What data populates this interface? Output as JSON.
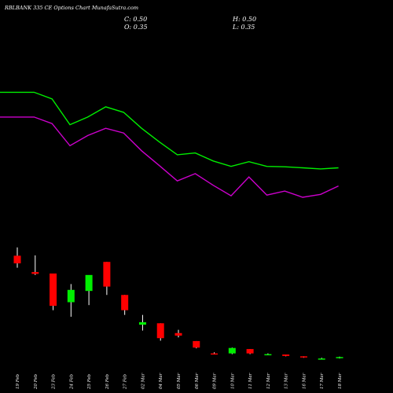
{
  "header": {
    "title": "RBLBANK 335 CE Options  Chart MunafaSutra.com",
    "close": "C: 0.50",
    "open": "O: 0.35",
    "high": "H: 0.50",
    "low": "L: 0.35"
  },
  "chart_data": {
    "type": "candlestick",
    "title": "RBLBANK 335 CE Options  Chart MunafaSutra.com",
    "categories": [
      "19 Feb",
      "20 Feb",
      "23 Feb",
      "24 Feb",
      "25 Feb",
      "26 Feb",
      "27 Feb",
      "02 Mar",
      "04 Mar",
      "05 Mar",
      "06 Mar",
      "09 Mar",
      "10 Mar",
      "11 Mar",
      "12 Mar",
      "13 Mar",
      "16 Mar",
      "17 Mar",
      "18 Mar"
    ],
    "candles": [
      {
        "o": 7.5,
        "h": 9.8,
        "l": 4.2,
        "c": 5.4,
        "color": "#ff0000"
      },
      {
        "o": 3.0,
        "h": 7.6,
        "l": 2.2,
        "c": 2.5,
        "color": "#ff0000"
      },
      {
        "o": 2.6,
        "h": 2.6,
        "l": -7.5,
        "c": -6.3,
        "color": "#ff0000"
      },
      {
        "o": -5.3,
        "h": -0.3,
        "l": -9.3,
        "c": -1.9,
        "color": "#00ee00"
      },
      {
        "o": -2.2,
        "h": 2.0,
        "l": -6.1,
        "c": 2.2,
        "color": "#00ee00"
      },
      {
        "o": 5.8,
        "h": 5.8,
        "l": -3.3,
        "c": -1.0,
        "color": "#ff0000"
      },
      {
        "o": -3.3,
        "h": -3.3,
        "l": -8.8,
        "c": -7.5,
        "color": "#ff0000"
      },
      {
        "o": -11.5,
        "h": -8.8,
        "l": -13.1,
        "c": -10.8,
        "color": "#00ee00"
      },
      {
        "o": -11.1,
        "h": -11.1,
        "l": -15.9,
        "c": -15.2,
        "color": "#ff0000"
      },
      {
        "o": -13.8,
        "h": -12.9,
        "l": -15.0,
        "c": -14.5,
        "color": "#ff0000"
      },
      {
        "o": -16.0,
        "h": -16.0,
        "l": -18.0,
        "c": -17.8,
        "color": "#ff0000"
      },
      {
        "o": -19.4,
        "h": -19.1,
        "l": -19.6,
        "c": -19.4,
        "color": "#ff0000"
      },
      {
        "o": -19.4,
        "h": -17.8,
        "l": -19.6,
        "c": -17.9,
        "color": "#00ee00"
      },
      {
        "o": -18.2,
        "h": -18.2,
        "l": -19.6,
        "c": -19.4,
        "color": "#ff0000"
      },
      {
        "o": -19.6,
        "h": -19.4,
        "l": -19.9,
        "c": -19.6,
        "color": "#00ee00"
      },
      {
        "o": -19.7,
        "h": -19.7,
        "l": -20.2,
        "c": -20.1,
        "color": "#ff0000"
      },
      {
        "o": -20.2,
        "h": -20.2,
        "l": -20.6,
        "c": -20.5,
        "color": "#ff0000"
      },
      {
        "o": -20.8,
        "h": -20.6,
        "l": -21.0,
        "c": -20.8,
        "color": "#00ee00"
      },
      {
        "o": -20.5,
        "h": -20.3,
        "l": -20.8,
        "c": -20.4,
        "color": "#00ee00"
      }
    ],
    "series": [
      {
        "color": "#00ee00",
        "values": [
          52.5,
          52.5,
          50.7,
          43.6,
          45.7,
          48.5,
          47.0,
          42.6,
          38.8,
          35.3,
          35.8,
          33.6,
          32.1,
          33.4,
          32.1,
          32.0,
          31.7,
          31.4,
          31.7
        ]
      },
      {
        "color": "#cc00cc",
        "values": [
          45.7,
          45.7,
          43.9,
          37.8,
          40.6,
          42.6,
          41.3,
          36.4,
          32.3,
          28.1,
          30.1,
          26.9,
          24.0,
          29.2,
          24.2,
          25.3,
          23.6,
          24.4,
          26.7
        ]
      }
    ]
  }
}
